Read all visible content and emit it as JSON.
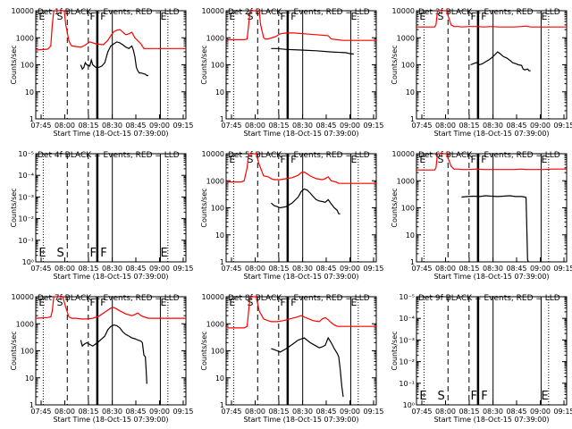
{
  "colors": {
    "events": "#000000",
    "lld": "#ff0000",
    "axes": "#000000",
    "background": "#ffffff"
  },
  "common": {
    "title_suffix": "BLACK = Events, RED = LLD",
    "xlabel": "Start Time (18-Oct-15 07:39:00)",
    "ylabel": "Counts/sec",
    "x_ticks": [
      "07:45",
      "08:00",
      "08:15",
      "08:30",
      "08:45",
      "09:00",
      "09:15"
    ],
    "y_ticks": [
      "1",
      "10",
      "100",
      "1000",
      "10000"
    ],
    "empty_y_ticks": [
      "10⁰",
      "10⁻¹",
      "10⁻²",
      "10⁻³",
      "10⁻⁴",
      "10⁻⁵"
    ],
    "marker_letters": [
      "E",
      "S",
      "F",
      "F",
      "E"
    ]
  },
  "chart_data": [
    {
      "type": "line",
      "title": "Det 1f BLACK = Events, RED = LLD",
      "empty": false,
      "xlabel": "Start Time (18-Oct-15 07:39:00)",
      "ylabel": "Counts/sec",
      "xlim": [
        0,
        100
      ],
      "ylim": [
        1,
        10000
      ],
      "yscale": "log",
      "series": [
        {
          "color": "#ff0000",
          "x": [
            0,
            8,
            10,
            11,
            12,
            13,
            19,
            20,
            22,
            23,
            24,
            30,
            32,
            36,
            40,
            45,
            48,
            50,
            52,
            54,
            56,
            60,
            62,
            64,
            66,
            70,
            72,
            100
          ],
          "y": [
            350,
            380,
            500,
            3000,
            10000,
            10000,
            10000,
            3000,
            800,
            600,
            500,
            450,
            500,
            700,
            600,
            550,
            800,
            1200,
            1700,
            1900,
            2000,
            1300,
            1400,
            1600,
            1000,
            600,
            400,
            400
          ]
        },
        {
          "color": "#000000",
          "x": [
            30,
            31,
            32,
            33,
            34,
            36,
            37,
            38,
            40,
            42,
            44,
            46,
            48,
            50,
            52,
            54,
            56,
            58,
            60,
            62,
            64,
            65,
            66,
            67,
            68,
            69,
            70,
            73,
            74,
            75
          ],
          "y": [
            100,
            70,
            80,
            120,
            100,
            90,
            150,
            100,
            80,
            80,
            90,
            120,
            300,
            500,
            600,
            700,
            650,
            550,
            450,
            400,
            500,
            350,
            200,
            80,
            60,
            50,
            50,
            45,
            40,
            40
          ]
        }
      ]
    },
    {
      "type": "line",
      "title": "Det 2f BLACK = Events, RED = LLD",
      "empty": false,
      "xlabel": "Start Time (18-Oct-15 07:39:00)",
      "ylabel": "Counts/sec",
      "xlim": [
        0,
        100
      ],
      "ylim": [
        1,
        10000
      ],
      "yscale": "log",
      "series": [
        {
          "color": "#ff0000",
          "x": [
            0,
            12,
            14,
            15,
            16,
            17,
            22,
            23,
            25,
            26,
            28,
            33,
            36,
            40,
            45,
            52,
            60,
            68,
            70,
            78,
            100
          ],
          "y": [
            850,
            850,
            900,
            3000,
            10000,
            10000,
            10000,
            3000,
            1000,
            900,
            900,
            1100,
            1400,
            1500,
            1500,
            1400,
            1300,
            1200,
            900,
            800,
            800
          ]
        },
        {
          "color": "#000000",
          "x": [
            30,
            34,
            40,
            50,
            60,
            70,
            80,
            82,
            85
          ],
          "y": [
            400,
            400,
            370,
            350,
            330,
            300,
            280,
            260,
            250
          ]
        }
      ]
    },
    {
      "type": "line",
      "title": "Det 3f BLACK = Events, RED = LLD",
      "empty": false,
      "xlabel": "Start Time (18-Oct-15 07:39:00)",
      "ylabel": "Counts/sec",
      "xlim": [
        0,
        100
      ],
      "ylim": [
        1,
        10000
      ],
      "yscale": "log",
      "series": [
        {
          "color": "#ff0000",
          "x": [
            0,
            12,
            13,
            14,
            15,
            16,
            20,
            23,
            25,
            28,
            30,
            35,
            40,
            45,
            50,
            55,
            60,
            65,
            70,
            73,
            76,
            80,
            100
          ],
          "y": [
            2500,
            2500,
            3000,
            10000,
            10000,
            10000,
            10000,
            3000,
            2600,
            2600,
            2500,
            2600,
            2600,
            2500,
            2600,
            2500,
            2500,
            2500,
            2600,
            2700,
            2500,
            2500,
            2500
          ]
        },
        {
          "color": "#000000",
          "x": [
            36,
            38,
            40,
            42,
            44,
            46,
            48,
            50,
            52,
            54,
            56,
            58,
            60,
            62,
            64,
            66,
            68,
            70,
            71,
            72,
            74,
            75,
            76
          ],
          "y": [
            100,
            110,
            120,
            100,
            110,
            130,
            150,
            180,
            230,
            300,
            250,
            200,
            180,
            150,
            120,
            110,
            100,
            95,
            70,
            65,
            70,
            60,
            60
          ]
        }
      ]
    },
    {
      "type": "line",
      "title": "Det 4f BLACK = Events, RED = LLD",
      "empty": true,
      "xlabel": "Start Time (18-Oct-15 07:39:00)",
      "ylabel": "Counts/sec",
      "xlim": [
        0,
        100
      ],
      "ylim": [
        1e-05,
        1
      ],
      "yscale": "log",
      "series": []
    },
    {
      "type": "line",
      "title": "Det 5f BLACK = Events, RED = LLD",
      "empty": false,
      "xlabel": "Start Time (18-Oct-15 07:39:00)",
      "ylabel": "Counts/sec",
      "xlim": [
        0,
        100
      ],
      "ylim": [
        1,
        10000
      ],
      "yscale": "log",
      "series": [
        {
          "color": "#ff0000",
          "x": [
            0,
            10,
            12,
            14,
            15,
            16,
            20,
            22,
            25,
            28,
            30,
            32,
            36,
            40,
            44,
            48,
            50,
            52,
            54,
            56,
            60,
            64,
            66,
            68,
            70,
            73,
            75,
            100
          ],
          "y": [
            900,
            900,
            1000,
            3000,
            10000,
            10000,
            10000,
            4000,
            1500,
            1400,
            1200,
            1100,
            1100,
            1200,
            1300,
            1600,
            2000,
            2100,
            1800,
            1500,
            1200,
            1100,
            1200,
            1400,
            1000,
            900,
            800,
            800
          ]
        },
        {
          "color": "#000000",
          "x": [
            30,
            32,
            34,
            36,
            40,
            44,
            48,
            50,
            52,
            54,
            56,
            58,
            60,
            62,
            64,
            66,
            68,
            70,
            72,
            74,
            75,
            76
          ],
          "y": [
            150,
            120,
            110,
            100,
            110,
            150,
            250,
            400,
            500,
            450,
            350,
            260,
            200,
            180,
            170,
            160,
            200,
            140,
            100,
            80,
            60,
            60
          ]
        }
      ]
    },
    {
      "type": "line",
      "title": "Det 6f BLACK = Events, RED = LLD",
      "empty": false,
      "xlabel": "Start Time (18-Oct-15 07:39:00)",
      "ylabel": "Counts/sec",
      "xlim": [
        0,
        100
      ],
      "ylim": [
        1,
        10000
      ],
      "yscale": "log",
      "series": [
        {
          "color": "#ff0000",
          "x": [
            0,
            12,
            13,
            14,
            15,
            16,
            20,
            23,
            25,
            28,
            30,
            35,
            40,
            45,
            50,
            55,
            60,
            65,
            70,
            73,
            76,
            80,
            85,
            90,
            100
          ],
          "y": [
            2500,
            2500,
            3000,
            10000,
            10000,
            10000,
            10000,
            3500,
            2700,
            2700,
            2600,
            2600,
            2700,
            2600,
            2600,
            2600,
            2600,
            2600,
            2700,
            2600,
            2600,
            2600,
            2600,
            2700,
            2700
          ]
        },
        {
          "color": "#000000",
          "x": [
            30,
            34,
            38,
            42,
            46,
            50,
            54,
            58,
            62,
            66,
            70,
            72,
            73,
            74,
            74.5
          ],
          "y": [
            250,
            260,
            270,
            260,
            280,
            270,
            260,
            270,
            280,
            260,
            260,
            250,
            240,
            1.2,
            1
          ]
        }
      ]
    },
    {
      "type": "line",
      "title": "Det 7f BLACK = Events, RED = LLD",
      "empty": false,
      "xlabel": "Start Time (18-Oct-15 07:39:00)",
      "ylabel": "Counts/sec",
      "xlim": [
        0,
        100
      ],
      "ylim": [
        1,
        10000
      ],
      "yscale": "log",
      "series": [
        {
          "color": "#ff0000",
          "x": [
            0,
            8,
            10,
            11,
            12,
            13,
            18,
            20,
            22,
            24,
            27,
            30,
            34,
            38,
            42,
            46,
            50,
            52,
            54,
            56,
            60,
            64,
            66,
            68,
            70,
            72,
            75,
            100
          ],
          "y": [
            1600,
            1700,
            1800,
            3000,
            10000,
            10000,
            10000,
            4000,
            1800,
            1600,
            1600,
            1500,
            1500,
            1600,
            1900,
            2700,
            3800,
            4000,
            3500,
            3000,
            2300,
            2000,
            2200,
            2500,
            2000,
            1800,
            1600,
            1600
          ]
        },
        {
          "color": "#000000",
          "x": [
            30,
            31,
            32,
            34,
            36,
            38,
            42,
            46,
            48,
            50,
            52,
            54,
            56,
            58,
            60,
            62,
            64,
            66,
            68,
            70,
            71,
            72,
            73,
            73.5,
            74
          ],
          "y": [
            250,
            150,
            170,
            200,
            170,
            150,
            220,
            350,
            600,
            800,
            900,
            850,
            700,
            500,
            400,
            350,
            300,
            280,
            250,
            230,
            200,
            70,
            60,
            20,
            6
          ]
        }
      ]
    },
    {
      "type": "line",
      "title": "Det 8f BLACK = Events, RED = LLD",
      "empty": false,
      "xlabel": "Start Time (18-Oct-15 07:39:00)",
      "ylabel": "Counts/sec",
      "xlim": [
        0,
        100
      ],
      "ylim": [
        1,
        10000
      ],
      "yscale": "log",
      "series": [
        {
          "color": "#ff0000",
          "x": [
            0,
            12,
            14,
            15,
            16,
            17,
            20,
            22,
            25,
            28,
            30,
            34,
            38,
            42,
            46,
            50,
            54,
            58,
            62,
            64,
            66,
            68,
            70,
            72,
            74,
            76,
            78,
            100
          ],
          "y": [
            700,
            700,
            800,
            3000,
            10000,
            10000,
            10000,
            3000,
            1500,
            1300,
            1200,
            1200,
            1300,
            1500,
            1700,
            2000,
            1600,
            1300,
            1200,
            1500,
            1700,
            1400,
            1100,
            900,
            800,
            800,
            800,
            800
          ]
        },
        {
          "color": "#000000",
          "x": [
            30,
            32,
            34,
            36,
            40,
            44,
            48,
            52,
            56,
            60,
            62,
            64,
            66,
            68,
            70,
            72,
            74,
            75,
            76,
            77,
            78
          ],
          "y": [
            120,
            110,
            100,
            90,
            120,
            170,
            250,
            300,
            200,
            150,
            130,
            140,
            160,
            300,
            200,
            120,
            80,
            60,
            20,
            5,
            2
          ]
        }
      ]
    },
    {
      "type": "line",
      "title": "Det 9f BLACK = Events, RED = LLD",
      "empty": true,
      "xlabel": "Start Time (18-Oct-15 07:39:00)",
      "ylabel": "Counts/sec",
      "xlim": [
        0,
        100
      ],
      "ylim": [
        1e-05,
        1
      ],
      "yscale": "log",
      "series": []
    }
  ]
}
